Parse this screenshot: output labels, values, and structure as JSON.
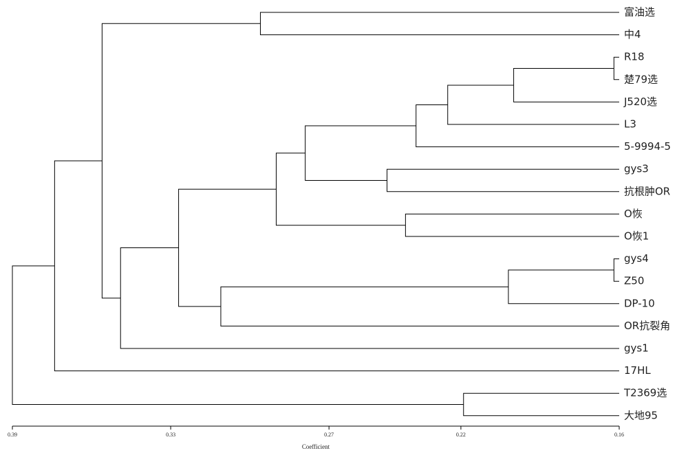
{
  "chart_data": {
    "type": "dendrogram",
    "x_label": "Coefficient",
    "xlim": [
      0.39,
      0.16
    ],
    "xticks": [
      0.39,
      0.33,
      0.27,
      0.22,
      0.16
    ],
    "color": "#000000",
    "tree": {
      "height": 0.39,
      "children": [
        {
          "height": 0.374,
          "children": [
            {
              "height": 0.356,
              "children": [
                {
                  "height": 0.296,
                  "children": [
                    {
                      "label": "富油选"
                    },
                    {
                      "label": "中4"
                    }
                  ]
                },
                {
                  "height": 0.349,
                  "children": [
                    {
                      "height": 0.327,
                      "children": [
                        {
                          "height": 0.29,
                          "children": [
                            {
                              "height": 0.279,
                              "children": [
                                {
                                  "height": 0.237,
                                  "children": [
                                    {
                                      "height": 0.225,
                                      "children": [
                                        {
                                          "height": 0.2,
                                          "children": [
                                            {
                                              "height": 0.162,
                                              "children": [
                                                {
                                                  "label": "R18"
                                                },
                                                {
                                                  "label": "楚79选"
                                                }
                                              ]
                                            },
                                            {
                                              "label": "J520选"
                                            }
                                          ]
                                        },
                                        {
                                          "label": "L3"
                                        }
                                      ]
                                    },
                                    {
                                      "label": "5-9994-5"
                                    }
                                  ]
                                },
                                {
                                  "height": 0.248,
                                  "children": [
                                    {
                                      "label": "gys3"
                                    },
                                    {
                                      "label": "抗根肿OR"
                                    }
                                  ]
                                }
                              ]
                            },
                            {
                              "height": 0.241,
                              "children": [
                                {
                                  "label": "O恢"
                                },
                                {
                                  "label": "O恢1"
                                }
                              ]
                            }
                          ]
                        },
                        {
                          "height": 0.311,
                          "children": [
                            {
                              "height": 0.202,
                              "children": [
                                {
                                  "height": 0.162,
                                  "children": [
                                    {
                                      "label": "gys4"
                                    },
                                    {
                                      "label": "Z50"
                                    }
                                  ]
                                },
                                {
                                  "label": "DP-10"
                                }
                              ]
                            },
                            {
                              "label": "OR抗裂角"
                            }
                          ]
                        }
                      ]
                    },
                    {
                      "label": "gys1"
                    }
                  ]
                }
              ]
            },
            {
              "label": "17HL"
            }
          ]
        },
        {
          "height": 0.219,
          "children": [
            {
              "label": "T2369选"
            },
            {
              "label": "大地95"
            }
          ]
        }
      ]
    }
  }
}
